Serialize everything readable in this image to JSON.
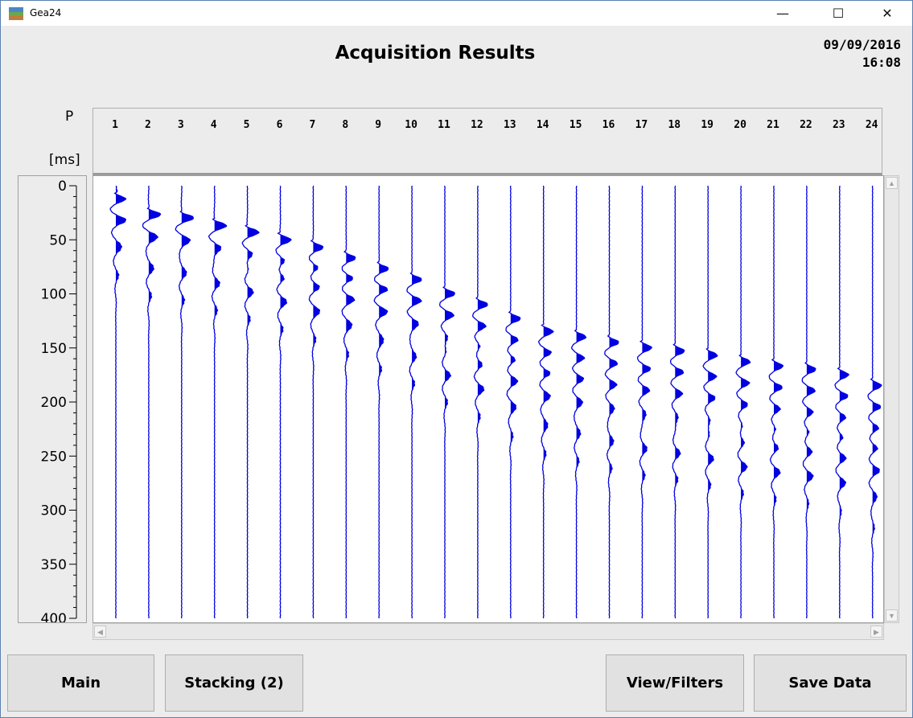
{
  "window": {
    "title": "Gea24",
    "minimize_glyph": "—",
    "maximize_glyph": "☐",
    "close_glyph": "✕"
  },
  "header": {
    "title": "Acquisition Results",
    "date": "09/09/2016",
    "time": "16:08"
  },
  "axis_labels": {
    "p": "P",
    "unit": "[ms]"
  },
  "chart_data": {
    "type": "line",
    "title": "",
    "ylabel": "[ms]",
    "ylim": [
      0,
      400
    ],
    "yticks": [
      "0",
      "50",
      "100",
      "150",
      "200",
      "250",
      "300",
      "350",
      "400"
    ],
    "channel_header": "P",
    "channels": [
      "1",
      "2",
      "3",
      "4",
      "5",
      "6",
      "7",
      "8",
      "9",
      "10",
      "11",
      "12",
      "13",
      "14",
      "15",
      "16",
      "17",
      "18",
      "19",
      "20",
      "21",
      "22",
      "23",
      "24"
    ],
    "first_break_ms": [
      8,
      22,
      25,
      32,
      38,
      45,
      52,
      62,
      72,
      82,
      95,
      105,
      118,
      130,
      135,
      140,
      145,
      148,
      152,
      158,
      162,
      165,
      170,
      180
    ],
    "series_color": "#0000e0"
  },
  "buttons": {
    "main": "Main",
    "stacking": "Stacking (2)",
    "view_filters": "View/Filters",
    "save_data": "Save Data"
  },
  "colors": {
    "trace": "#0000e0",
    "background": "#ececec"
  }
}
